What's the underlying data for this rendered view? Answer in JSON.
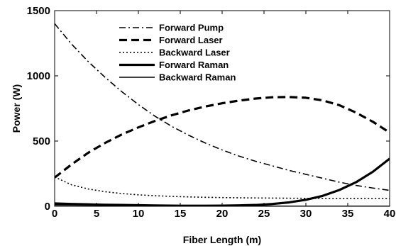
{
  "chart_data": {
    "type": "line",
    "title": "",
    "xlabel": "Fiber Length (m)",
    "ylabel": "Power (W)",
    "xlim": [
      0,
      40
    ],
    "ylim": [
      0,
      1500
    ],
    "xticks": [
      0,
      5,
      10,
      15,
      20,
      25,
      30,
      35,
      40
    ],
    "yticks": [
      0,
      500,
      1000,
      1500
    ],
    "grid": false,
    "legend_position": "top-left",
    "series": [
      {
        "name": "Forward Pump",
        "style": "dashdot",
        "width": "normal",
        "x": [
          0,
          2,
          4,
          6,
          8,
          10,
          12,
          14,
          16,
          18,
          20,
          22,
          24,
          26,
          28,
          30,
          32,
          34,
          36,
          38,
          40
        ],
        "y": [
          1400,
          1245,
          1110,
          990,
          880,
          780,
          690,
          612,
          545,
          485,
          432,
          385,
          345,
          310,
          275,
          245,
          215,
          185,
          160,
          140,
          122
        ]
      },
      {
        "name": "Forward Laser",
        "style": "dashed",
        "width": "thick",
        "x": [
          0,
          2,
          4,
          6,
          8,
          10,
          12,
          14,
          16,
          18,
          20,
          22,
          24,
          26,
          28,
          30,
          32,
          34,
          36,
          38,
          40
        ],
        "y": [
          220,
          320,
          410,
          485,
          550,
          605,
          655,
          698,
          735,
          765,
          790,
          810,
          826,
          836,
          838,
          832,
          812,
          775,
          718,
          648,
          565
        ]
      },
      {
        "name": "Backward Laser",
        "style": "dotted",
        "width": "normal",
        "x": [
          0,
          2,
          4,
          6,
          8,
          10,
          12,
          14,
          16,
          18,
          20,
          22,
          24,
          26,
          28,
          30,
          32,
          34,
          36,
          38,
          40
        ],
        "y": [
          225,
          165,
          133,
          112,
          98,
          88,
          81,
          76,
          72,
          69,
          67,
          65,
          64,
          63,
          62,
          61,
          61,
          60,
          60,
          60,
          60
        ]
      },
      {
        "name": "Forward Raman",
        "style": "solid",
        "width": "thick",
        "x": [
          0,
          2,
          4,
          6,
          8,
          10,
          12,
          14,
          16,
          18,
          20,
          22,
          24,
          26,
          28,
          30,
          32,
          34,
          36,
          38,
          40
        ],
        "y": [
          22,
          18,
          15,
          12,
          10,
          8,
          6,
          5,
          4,
          4,
          5,
          7,
          10,
          18,
          30,
          50,
          80,
          125,
          185,
          265,
          365
        ]
      },
      {
        "name": "Backward Raman",
        "style": "solid",
        "width": "normal",
        "x": [
          0,
          2,
          4,
          6,
          8,
          10,
          12,
          14,
          16,
          18,
          20,
          22,
          24,
          26,
          28,
          30,
          32,
          34,
          36,
          38,
          40
        ],
        "y": [
          10,
          9,
          8,
          7,
          6,
          5,
          5,
          4,
          3,
          3,
          2,
          2,
          2,
          2,
          1,
          1,
          1,
          1,
          1,
          1,
          1
        ]
      }
    ]
  }
}
